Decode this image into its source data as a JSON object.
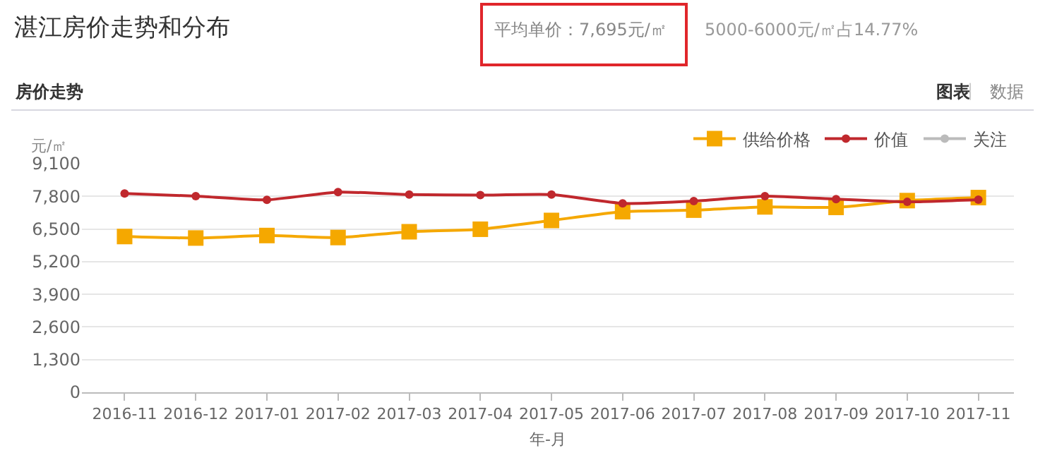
{
  "chart_data": {
    "type": "line",
    "title": "湛江房价走势和分布",
    "subtitle": "房价走势",
    "annotations": [
      "平均单价：7,695元/㎡",
      "5000-6000元/㎡占14.77%",
      "图表",
      "|",
      "数据"
    ],
    "xlabel": "年-月",
    "ylabel": "元/㎡",
    "categories": [
      "2016-11",
      "2016-12",
      "2017-01",
      "2017-02",
      "2017-03",
      "2017-04",
      "2017-05",
      "2017-06",
      "2017-07",
      "2017-08",
      "2017-09",
      "2017-10",
      "2017-11"
    ],
    "series": [
      {
        "name": "供给价格",
        "color": "#f5a800",
        "marker": "square",
        "values": [
          6200,
          6140,
          6240,
          6160,
          6390,
          6490,
          6840,
          7190,
          7250,
          7380,
          7360,
          7630,
          7750
        ]
      },
      {
        "name": "价值",
        "color": "#c0282d",
        "marker": "circle",
        "values": [
          7910,
          7810,
          7660,
          7970,
          7870,
          7850,
          7870,
          7520,
          7610,
          7810,
          7690,
          7580,
          7670
        ]
      },
      {
        "name": "关注",
        "color": "#bbbbbb",
        "marker": "circle",
        "values": [
          null,
          null,
          null,
          null,
          null,
          null,
          null,
          null,
          null,
          null,
          null,
          null,
          null
        ]
      }
    ],
    "ylim": [
      0,
      9100
    ],
    "yticks": [
      {
        "value": 0,
        "label": "0"
      },
      {
        "value": 1300,
        "label": "1,300"
      },
      {
        "value": 2600,
        "label": "2,600"
      },
      {
        "value": 3900,
        "label": "3,900"
      },
      {
        "value": 5200,
        "label": "5,200"
      },
      {
        "value": 6500,
        "label": "6,500"
      },
      {
        "value": 7800,
        "label": "7,800"
      },
      {
        "value": 9100,
        "label": "9,100"
      }
    ],
    "grid": "y",
    "legend": "top right",
    "line_style": "solid"
  }
}
